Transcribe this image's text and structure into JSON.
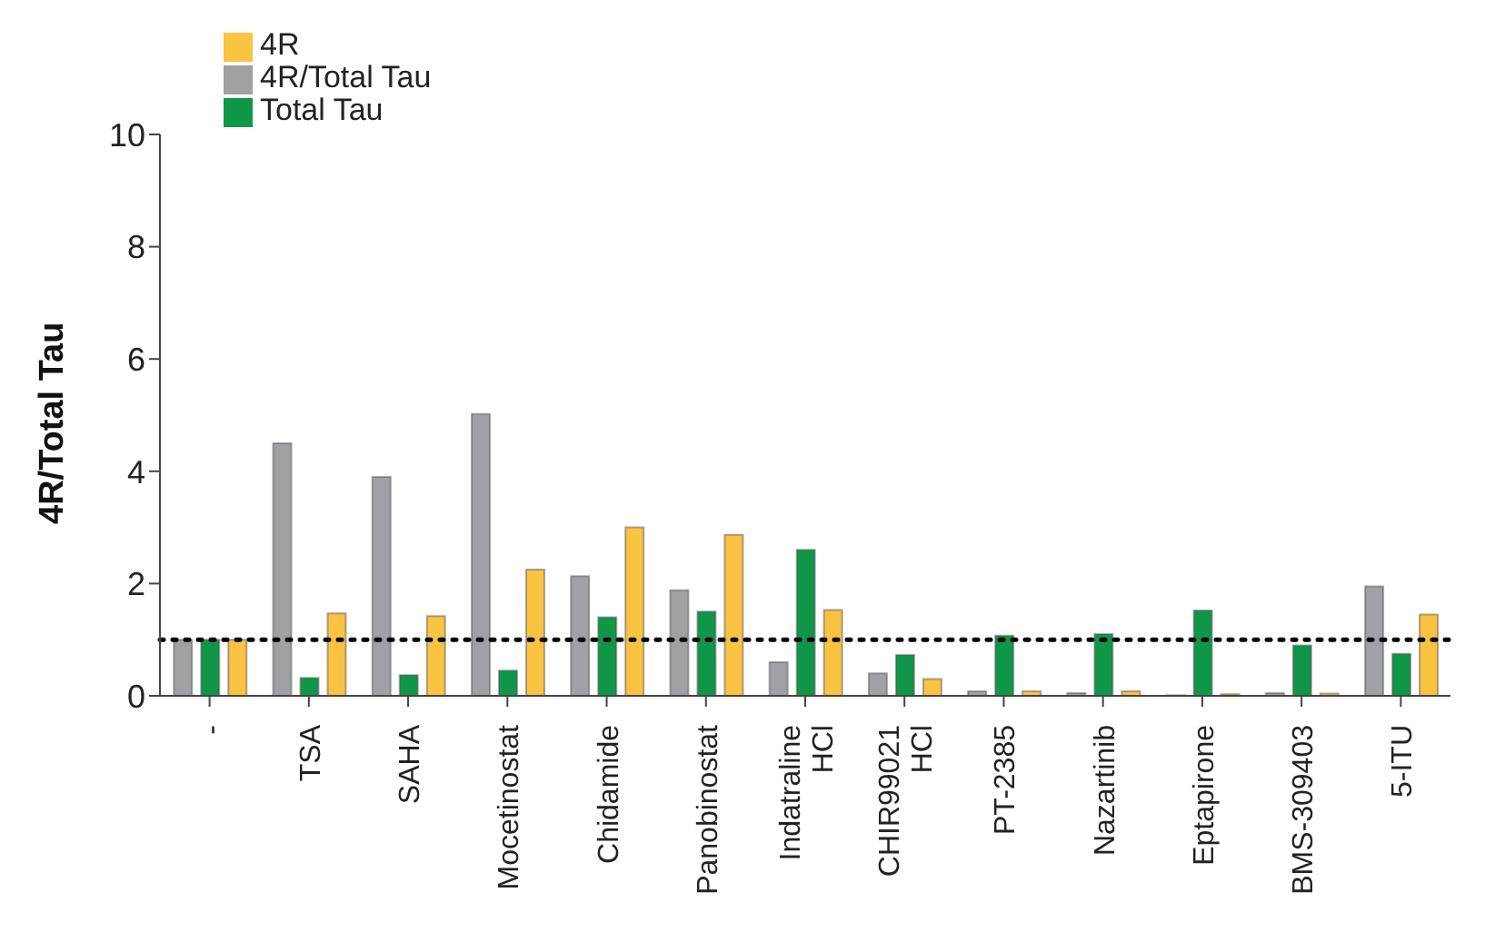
{
  "chart_data": {
    "type": "bar",
    "ylabel": "4R/Total Tau",
    "categories": [
      "-",
      "TSA",
      "SAHA",
      "Mocetinostat",
      "Chidamide",
      "Panobinostat",
      "Indatraline\nHCl",
      "CHIR99021\nHCl",
      "PT-2385",
      "Nazartinib",
      "Eptapirone",
      "BMS-309403",
      "5-ITU"
    ],
    "series": [
      {
        "name": "4R/Total Tau",
        "color": "#a0a1a5",
        "values": [
          1,
          4.5,
          3.9,
          5.02,
          2.13,
          1.88,
          0.6,
          0.4,
          0.08,
          0.05,
          0.01,
          0.05,
          1.95
        ]
      },
      {
        "name": "Total Tau",
        "color": "#109648",
        "values": [
          1,
          0.32,
          0.37,
          0.45,
          1.4,
          1.5,
          2.6,
          0.73,
          1.07,
          1.1,
          1.52,
          0.9,
          0.75
        ]
      },
      {
        "name": "4R",
        "color": "#fac342",
        "values": [
          1,
          1.47,
          1.42,
          2.25,
          3.0,
          2.87,
          1.53,
          0.3,
          0.08,
          0.08,
          0.03,
          0.04,
          1.45
        ]
      }
    ],
    "ylim": [
      0,
      10
    ],
    "yticks": [
      0,
      2,
      4,
      6,
      8,
      10
    ],
    "grid": false,
    "legend": "top left",
    "ref_lines": [
      {
        "axis": "y",
        "value": 1,
        "line_style": "dotted",
        "color": "#000000"
      }
    ]
  }
}
